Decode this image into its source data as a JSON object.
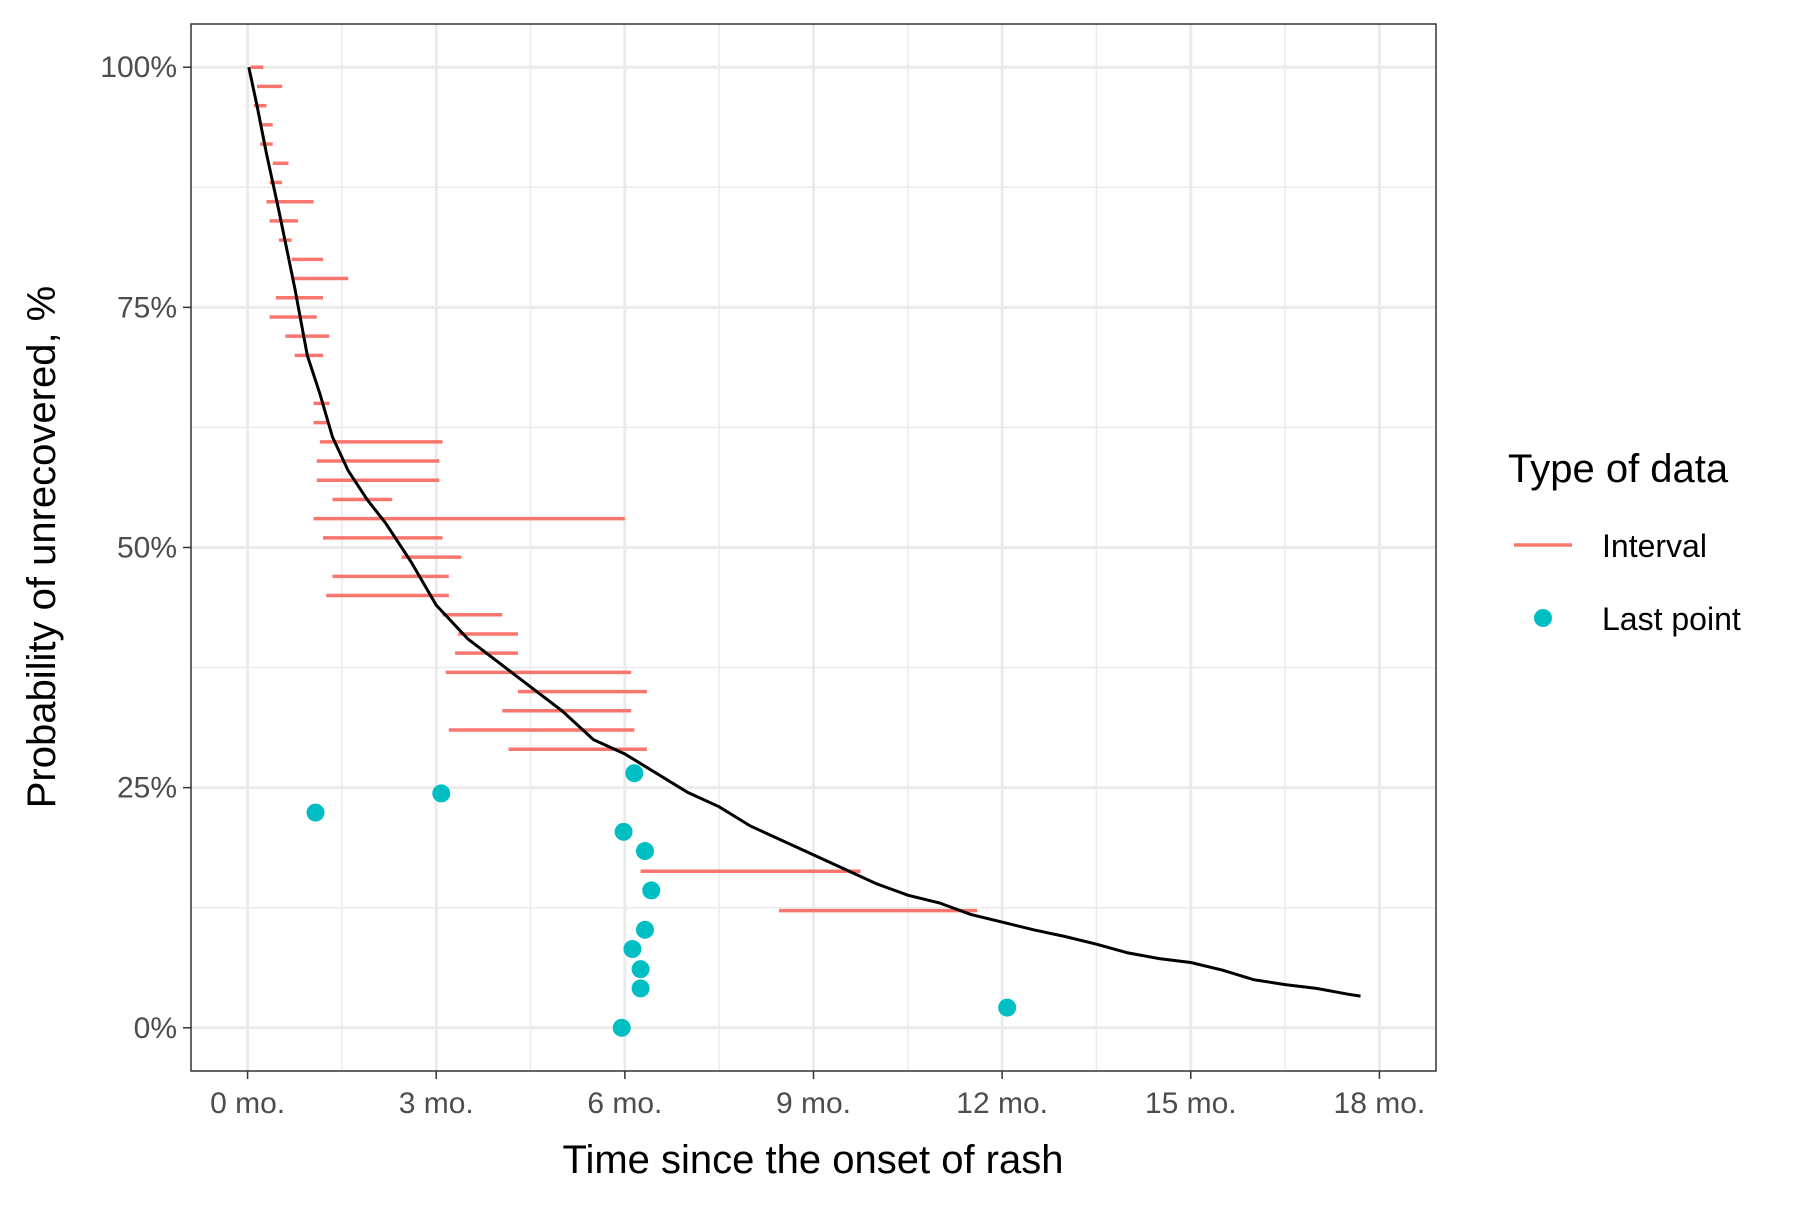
{
  "chart_data": {
    "type": "scatter",
    "title": "",
    "xlabel": "Time since the onset of rash",
    "ylabel": "Probability of unrecovered, %",
    "xlim": [
      -0.9,
      18.9
    ],
    "ylim": [
      -4.5,
      104.5
    ],
    "x_ticks": [
      {
        "value": 0,
        "label": "0 mo."
      },
      {
        "value": 3,
        "label": "3 mo."
      },
      {
        "value": 6,
        "label": "6 mo."
      },
      {
        "value": 9,
        "label": "9 mo."
      },
      {
        "value": 12,
        "label": "12 mo."
      },
      {
        "value": 15,
        "label": "15 mo."
      },
      {
        "value": 18,
        "label": "18 mo."
      }
    ],
    "y_ticks": [
      {
        "value": 0,
        "label": "0%"
      },
      {
        "value": 25,
        "label": "25%"
      },
      {
        "value": 50,
        "label": "50%"
      },
      {
        "value": 75,
        "label": "75%"
      },
      {
        "value": 100,
        "label": "100%"
      }
    ],
    "grid": true,
    "legend": {
      "title": "Type of data",
      "position": "right",
      "entries": [
        {
          "label": "Interval",
          "kind": "line",
          "color": "#f8766d"
        },
        {
          "label": "Last point",
          "kind": "point",
          "color": "#00bfc4"
        }
      ]
    },
    "colors": {
      "interval": "#f8766d",
      "last_point": "#00bfc4",
      "curve": "#000000"
    },
    "survival_curve": {
      "x": [
        0.02,
        0.15,
        0.3,
        0.5,
        0.75,
        0.95,
        1.15,
        1.35,
        1.6,
        1.9,
        2.2,
        2.6,
        3.0,
        3.5,
        4.0,
        4.5,
        5.0,
        5.5,
        6.0,
        6.5,
        7.0,
        7.5,
        8.0,
        8.5,
        9.0,
        9.5,
        10.0,
        10.5,
        11.0,
        11.5,
        12.0,
        12.5,
        13.0,
        13.5,
        14.0,
        14.5,
        15.0,
        15.5,
        16.0,
        16.5,
        17.0,
        17.5,
        17.7
      ],
      "y": [
        100,
        96,
        91,
        85,
        77,
        70,
        66,
        61.5,
        58,
        55,
        52.5,
        48.5,
        44,
        40.5,
        38,
        35.5,
        33,
        30,
        28.5,
        26.5,
        24.5,
        23,
        21,
        19.5,
        18,
        16.5,
        15,
        13.8,
        13,
        11.8,
        11,
        10.2,
        9.5,
        8.7,
        7.8,
        7.2,
        6.8,
        6.0,
        5.0,
        4.5,
        4.1,
        3.5,
        3.3
      ]
    },
    "series": [
      {
        "name": "Interval",
        "kind": "segment",
        "segments": [
          {
            "x0": 0.05,
            "x1": 0.25,
            "y": 100
          },
          {
            "x0": 0.15,
            "x1": 0.55,
            "y": 98
          },
          {
            "x0": 0.1,
            "x1": 0.3,
            "y": 96
          },
          {
            "x0": 0.2,
            "x1": 0.4,
            "y": 94
          },
          {
            "x0": 0.2,
            "x1": 0.4,
            "y": 92
          },
          {
            "x0": 0.4,
            "x1": 0.65,
            "y": 90
          },
          {
            "x0": 0.35,
            "x1": 0.55,
            "y": 88
          },
          {
            "x0": 0.3,
            "x1": 1.05,
            "y": 86
          },
          {
            "x0": 0.35,
            "x1": 0.8,
            "y": 84
          },
          {
            "x0": 0.5,
            "x1": 0.7,
            "y": 82
          },
          {
            "x0": 0.7,
            "x1": 1.2,
            "y": 80
          },
          {
            "x0": 0.7,
            "x1": 1.6,
            "y": 78
          },
          {
            "x0": 0.45,
            "x1": 1.2,
            "y": 76
          },
          {
            "x0": 0.35,
            "x1": 1.1,
            "y": 74
          },
          {
            "x0": 0.6,
            "x1": 1.3,
            "y": 72
          },
          {
            "x0": 0.75,
            "x1": 1.2,
            "y": 70
          },
          {
            "x0": 1.05,
            "x1": 1.3,
            "y": 65
          },
          {
            "x0": 1.05,
            "x1": 1.3,
            "y": 63
          },
          {
            "x0": 1.15,
            "x1": 3.1,
            "y": 61
          },
          {
            "x0": 1.1,
            "x1": 3.05,
            "y": 59
          },
          {
            "x0": 1.1,
            "x1": 3.05,
            "y": 57
          },
          {
            "x0": 1.35,
            "x1": 2.3,
            "y": 55
          },
          {
            "x0": 1.05,
            "x1": 6.0,
            "y": 53
          },
          {
            "x0": 1.2,
            "x1": 3.1,
            "y": 51
          },
          {
            "x0": 2.45,
            "x1": 3.4,
            "y": 49
          },
          {
            "x0": 1.35,
            "x1": 3.2,
            "y": 47
          },
          {
            "x0": 1.25,
            "x1": 3.2,
            "y": 45
          },
          {
            "x0": 3.1,
            "x1": 4.05,
            "y": 43
          },
          {
            "x0": 3.35,
            "x1": 4.3,
            "y": 41
          },
          {
            "x0": 3.3,
            "x1": 4.3,
            "y": 39
          },
          {
            "x0": 3.15,
            "x1": 6.1,
            "y": 37
          },
          {
            "x0": 4.3,
            "x1": 6.35,
            "y": 35
          },
          {
            "x0": 4.05,
            "x1": 6.1,
            "y": 33
          },
          {
            "x0": 3.2,
            "x1": 6.15,
            "y": 31
          },
          {
            "x0": 4.15,
            "x1": 6.35,
            "y": 29
          },
          {
            "x0": 6.25,
            "x1": 9.75,
            "y": 16.3
          },
          {
            "x0": 8.45,
            "x1": 11.6,
            "y": 12.2
          }
        ]
      },
      {
        "name": "Last point",
        "kind": "point",
        "points": [
          {
            "x": 1.08,
            "y": 22.4
          },
          {
            "x": 3.08,
            "y": 24.4
          },
          {
            "x": 6.15,
            "y": 26.5
          },
          {
            "x": 5.98,
            "y": 20.4
          },
          {
            "x": 6.32,
            "y": 18.4
          },
          {
            "x": 6.42,
            "y": 14.3
          },
          {
            "x": 6.32,
            "y": 10.2
          },
          {
            "x": 6.12,
            "y": 8.2
          },
          {
            "x": 6.25,
            "y": 6.1
          },
          {
            "x": 6.25,
            "y": 4.1
          },
          {
            "x": 5.95,
            "y": 0
          },
          {
            "x": 12.08,
            "y": 2.1
          }
        ]
      }
    ]
  }
}
